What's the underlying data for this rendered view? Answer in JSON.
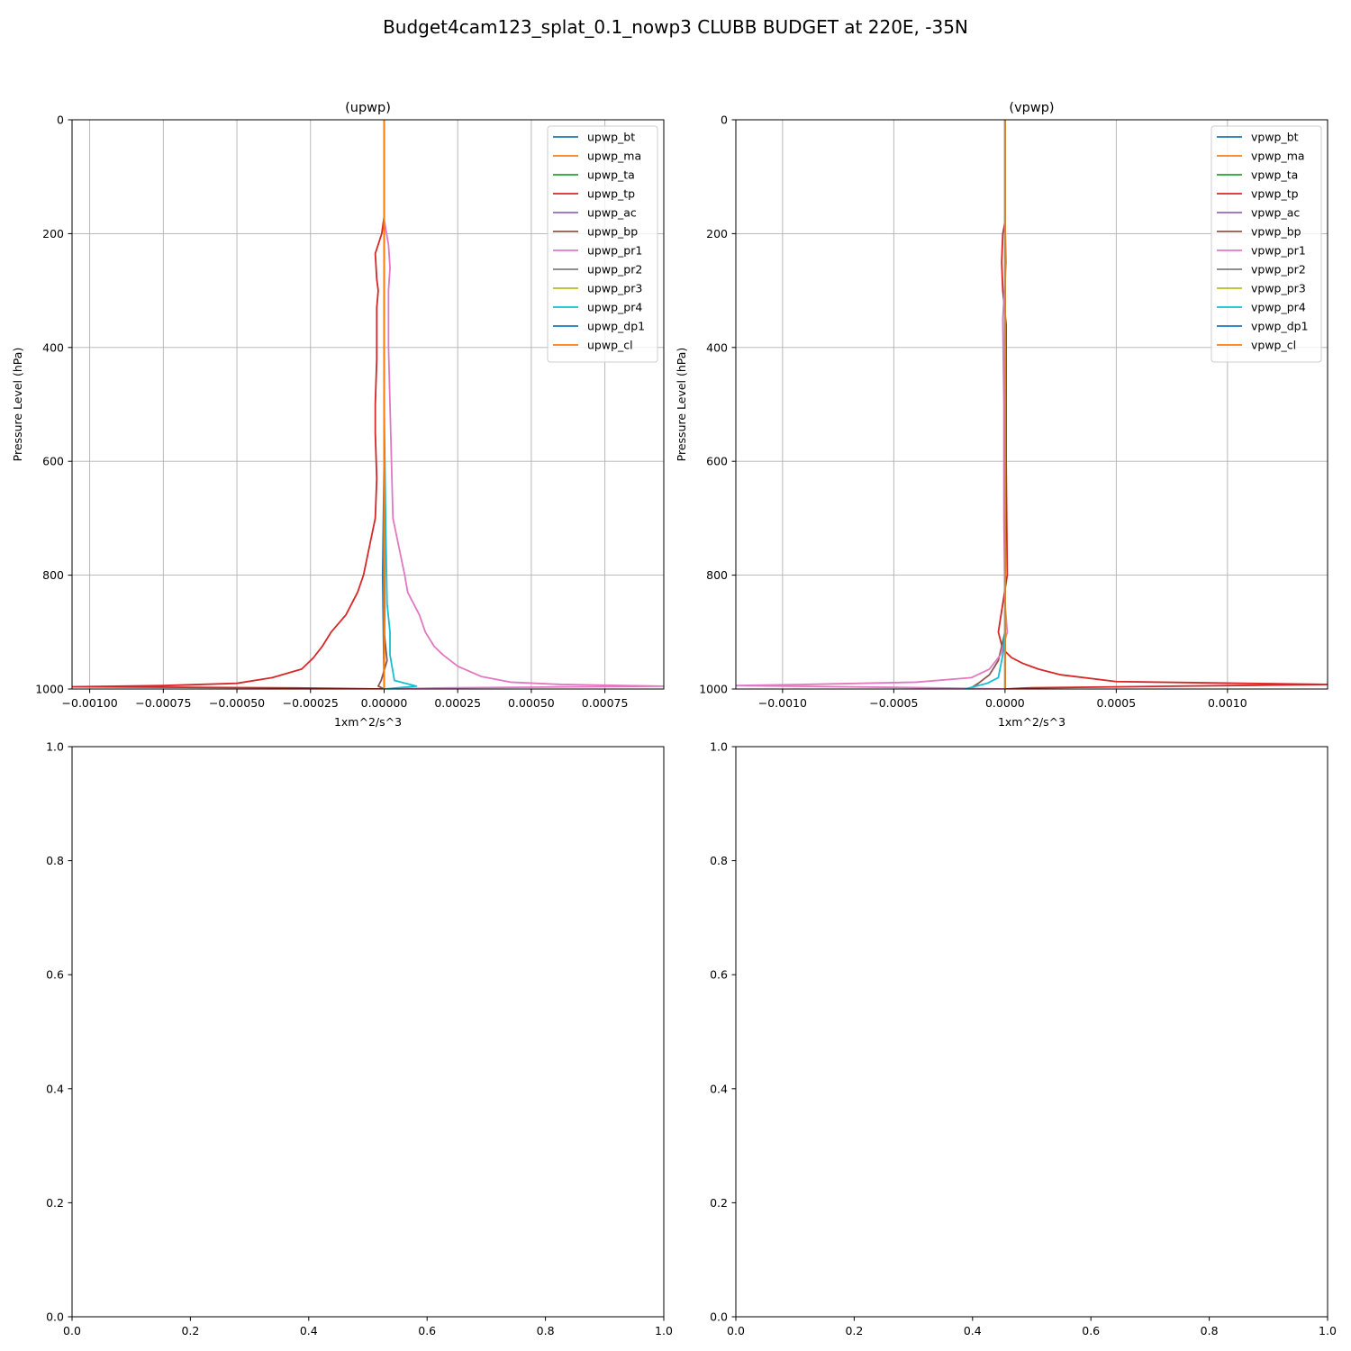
{
  "figure": {
    "title": "Budget4cam123_splat_0.1_nowp3 CLUBB BUDGET at 220E, -35N"
  },
  "chart_data": [
    {
      "type": "line",
      "title": "(upwp)",
      "xlabel": "1xm^2/s^3",
      "ylabel": "Pressure Level (hPa)",
      "xlim": [
        -0.00106,
        0.00095
      ],
      "ylim": [
        1000,
        0
      ],
      "xticks": [
        -0.001,
        -0.00075,
        -0.0005,
        -0.00025,
        0.0,
        0.00025,
        0.0005,
        0.00075
      ],
      "xtick_labels": [
        "−0.00100",
        "−0.00075",
        "−0.00050",
        "−0.00025",
        "0.00000",
        "0.00025",
        "0.00050",
        "0.00075"
      ],
      "yticks": [
        0,
        200,
        400,
        600,
        800,
        1000
      ],
      "ytick_labels": [
        "0",
        "200",
        "400",
        "600",
        "800",
        "1000"
      ],
      "grid": true,
      "legend_position": "top-right",
      "series": [
        {
          "name": "upwp_bt",
          "color": "#1f77b4",
          "points": [
            [
              0,
              0
            ],
            [
              0,
              600
            ],
            [
              -5e-06,
              800
            ],
            [
              0,
              1000
            ]
          ]
        },
        {
          "name": "upwp_ma",
          "color": "#ff7f0e",
          "points": [
            [
              0,
              0
            ],
            [
              0,
              1000
            ]
          ]
        },
        {
          "name": "upwp_ta",
          "color": "#2ca02c",
          "points": [
            [
              0,
              0
            ],
            [
              0,
              600
            ],
            [
              2e-06,
              850
            ],
            [
              0,
              1000
            ]
          ]
        },
        {
          "name": "upwp_tp",
          "color": "#d62728",
          "points": [
            [
              0,
              0
            ],
            [
              0,
              170
            ],
            [
              -8e-06,
              200
            ],
            [
              -3e-05,
              235
            ],
            [
              -2.5e-05,
              280
            ],
            [
              -2e-05,
              300
            ],
            [
              -2.5e-05,
              330
            ],
            [
              -2.5e-05,
              420
            ],
            [
              -3e-05,
              500
            ],
            [
              -3e-05,
              550
            ],
            [
              -2.5e-05,
              630
            ],
            [
              -3e-05,
              700
            ],
            [
              -5e-05,
              750
            ],
            [
              -7e-05,
              800
            ],
            [
              -9e-05,
              830
            ],
            [
              -0.00013,
              870
            ],
            [
              -0.00018,
              900
            ],
            [
              -0.00021,
              925
            ],
            [
              -0.00024,
              945
            ],
            [
              -0.00028,
              965
            ],
            [
              -0.00038,
              980
            ],
            [
              -0.0005,
              990
            ],
            [
              -0.00075,
              994
            ],
            [
              -0.00106,
              996
            ],
            [
              -0.0003,
              998
            ],
            [
              0,
              1000
            ]
          ]
        },
        {
          "name": "upwp_ac",
          "color": "#9467bd",
          "points": [
            [
              0,
              0
            ],
            [
              0,
              1000
            ]
          ]
        },
        {
          "name": "upwp_bp",
          "color": "#8c564b",
          "points": [
            [
              0,
              0
            ],
            [
              0,
              900
            ],
            [
              1e-05,
              950
            ],
            [
              -1e-05,
              985
            ],
            [
              -2e-05,
              995
            ],
            [
              0,
              1000
            ]
          ]
        },
        {
          "name": "upwp_pr1",
          "color": "#e377c2",
          "points": [
            [
              0,
              0
            ],
            [
              0,
              175
            ],
            [
              1.5e-05,
              220
            ],
            [
              2e-05,
              260
            ],
            [
              1.5e-05,
              300
            ],
            [
              1.5e-05,
              400
            ],
            [
              2e-05,
              500
            ],
            [
              2.5e-05,
              600
            ],
            [
              3e-05,
              700
            ],
            [
              5e-05,
              750
            ],
            [
              7e-05,
              800
            ],
            [
              8e-05,
              830
            ],
            [
              0.00012,
              870
            ],
            [
              0.00014,
              900
            ],
            [
              0.00017,
              925
            ],
            [
              0.0002,
              940
            ],
            [
              0.00025,
              960
            ],
            [
              0.00033,
              978
            ],
            [
              0.00043,
              988
            ],
            [
              0.0006,
              992
            ],
            [
              0.00095,
              995
            ],
            [
              0.0002,
              998
            ],
            [
              0,
              1000
            ]
          ]
        },
        {
          "name": "upwp_pr2",
          "color": "#7f7f7f",
          "points": [
            [
              0,
              0
            ],
            [
              0,
              1000
            ]
          ]
        },
        {
          "name": "upwp_pr3",
          "color": "#bcbd22",
          "points": [
            [
              0,
              0
            ],
            [
              0,
              1000
            ]
          ]
        },
        {
          "name": "upwp_pr4",
          "color": "#17becf",
          "points": [
            [
              0,
              0
            ],
            [
              0,
              500
            ],
            [
              5e-06,
              700
            ],
            [
              1e-05,
              850
            ],
            [
              2e-05,
              900
            ],
            [
              2e-05,
              940
            ],
            [
              3.5e-05,
              985
            ],
            [
              0.00011,
              995
            ],
            [
              0,
              1000
            ]
          ]
        },
        {
          "name": "upwp_dp1",
          "color": "#1f77b4",
          "points": [
            [
              0,
              0
            ],
            [
              0,
              1000
            ]
          ]
        },
        {
          "name": "upwp_cl",
          "color": "#ff7f0e",
          "points": [
            [
              0,
              0
            ],
            [
              0,
              1000
            ]
          ]
        }
      ]
    },
    {
      "type": "line",
      "title": "(vpwp)",
      "xlabel": "1xm^2/s^3",
      "ylabel": "Pressure Level (hPa)",
      "xlim": [
        -0.00121,
        0.00145
      ],
      "ylim": [
        1000,
        0
      ],
      "xticks": [
        -0.001,
        -0.0005,
        0.0,
        0.0005,
        0.001
      ],
      "xtick_labels": [
        "−0.0010",
        "−0.0005",
        "0.0000",
        "0.0005",
        "0.0010"
      ],
      "yticks": [
        0,
        200,
        400,
        600,
        800,
        1000
      ],
      "ytick_labels": [
        "0",
        "200",
        "400",
        "600",
        "800",
        "1000"
      ],
      "grid": true,
      "legend_position": "top-right",
      "series": [
        {
          "name": "vpwp_bt",
          "color": "#1f77b4",
          "points": [
            [
              0,
              0
            ],
            [
              0,
              1000
            ]
          ]
        },
        {
          "name": "vpwp_ma",
          "color": "#ff7f0e",
          "points": [
            [
              0,
              0
            ],
            [
              0,
              1000
            ]
          ]
        },
        {
          "name": "vpwp_ta",
          "color": "#2ca02c",
          "points": [
            [
              0,
              0
            ],
            [
              0,
              1000
            ]
          ]
        },
        {
          "name": "vpwp_tp",
          "color": "#d62728",
          "points": [
            [
              0,
              0
            ],
            [
              0,
              180
            ],
            [
              -1e-05,
              200
            ],
            [
              -1.5e-05,
              250
            ],
            [
              -1e-05,
              300
            ],
            [
              5e-06,
              360
            ],
            [
              5e-06,
              450
            ],
            [
              5e-06,
              600
            ],
            [
              1e-05,
              800
            ],
            [
              -1e-05,
              850
            ],
            [
              -3e-05,
              900
            ],
            [
              -1e-05,
              930
            ],
            [
              3e-05,
              945
            ],
            [
              8e-05,
              955
            ],
            [
              0.00015,
              965
            ],
            [
              0.00025,
              975
            ],
            [
              0.0005,
              987
            ],
            [
              0.00145,
              992
            ],
            [
              0.0001,
              998
            ],
            [
              0,
              1000
            ]
          ]
        },
        {
          "name": "vpwp_ac",
          "color": "#9467bd",
          "points": [
            [
              0,
              0
            ],
            [
              0,
              1000
            ]
          ]
        },
        {
          "name": "vpwp_bp",
          "color": "#8c564b",
          "points": [
            [
              0,
              0
            ],
            [
              0,
              900
            ],
            [
              -3e-05,
              950
            ],
            [
              -7e-05,
              975
            ],
            [
              -0.00012,
              990
            ],
            [
              -0.00016,
              1000
            ]
          ]
        },
        {
          "name": "vpwp_pr1",
          "color": "#e377c2",
          "points": [
            [
              0,
              0
            ],
            [
              0,
              180
            ],
            [
              5e-06,
              250
            ],
            [
              -1e-05,
              350
            ],
            [
              -5e-06,
              500
            ],
            [
              -5e-06,
              700
            ],
            [
              0,
              850
            ],
            [
              1e-05,
              900
            ],
            [
              -2e-05,
              940
            ],
            [
              -7e-05,
              965
            ],
            [
              -0.00015,
              980
            ],
            [
              -0.0004,
              988
            ],
            [
              -0.0009,
              992
            ],
            [
              -0.00121,
              994
            ],
            [
              -0.0003,
              998
            ],
            [
              0,
              1000
            ]
          ]
        },
        {
          "name": "vpwp_pr2",
          "color": "#7f7f7f",
          "points": [
            [
              0,
              0
            ],
            [
              0,
              1000
            ]
          ]
        },
        {
          "name": "vpwp_pr3",
          "color": "#bcbd22",
          "points": [
            [
              0,
              0
            ],
            [
              0,
              1000
            ]
          ]
        },
        {
          "name": "vpwp_pr4",
          "color": "#17becf",
          "points": [
            [
              0,
              0
            ],
            [
              0,
              900
            ],
            [
              -1e-05,
              940
            ],
            [
              -3e-05,
              980
            ],
            [
              -8e-05,
              990
            ],
            [
              -0.00018,
              1000
            ]
          ]
        },
        {
          "name": "vpwp_dp1",
          "color": "#1f77b4",
          "points": [
            [
              0,
              0
            ],
            [
              0,
              1000
            ]
          ]
        },
        {
          "name": "vpwp_cl",
          "color": "#ff7f0e",
          "points": [
            [
              0,
              0
            ],
            [
              0,
              1000
            ]
          ]
        }
      ]
    },
    {
      "type": "line",
      "title": "",
      "xlabel": "",
      "ylabel": "",
      "xlim": [
        0,
        1
      ],
      "ylim": [
        0,
        1
      ],
      "xticks": [
        0,
        0.2,
        0.4,
        0.6,
        0.8,
        1
      ],
      "xtick_labels": [
        "0.0",
        "0.2",
        "0.4",
        "0.6",
        "0.8",
        "1.0"
      ],
      "yticks": [
        0,
        0.2,
        0.4,
        0.6,
        0.8,
        1
      ],
      "ytick_labels": [
        "0.0",
        "0.2",
        "0.4",
        "0.6",
        "0.8",
        "1.0"
      ],
      "grid": false,
      "series": []
    },
    {
      "type": "line",
      "title": "",
      "xlabel": "",
      "ylabel": "",
      "xlim": [
        0,
        1
      ],
      "ylim": [
        0,
        1
      ],
      "xticks": [
        0,
        0.2,
        0.4,
        0.6,
        0.8,
        1
      ],
      "xtick_labels": [
        "0.0",
        "0.2",
        "0.4",
        "0.6",
        "0.8",
        "1.0"
      ],
      "yticks": [
        0,
        0.2,
        0.4,
        0.6,
        0.8,
        1
      ],
      "ytick_labels": [
        "0.0",
        "0.2",
        "0.4",
        "0.6",
        "0.8",
        "1.0"
      ],
      "grid": false,
      "series": []
    }
  ]
}
